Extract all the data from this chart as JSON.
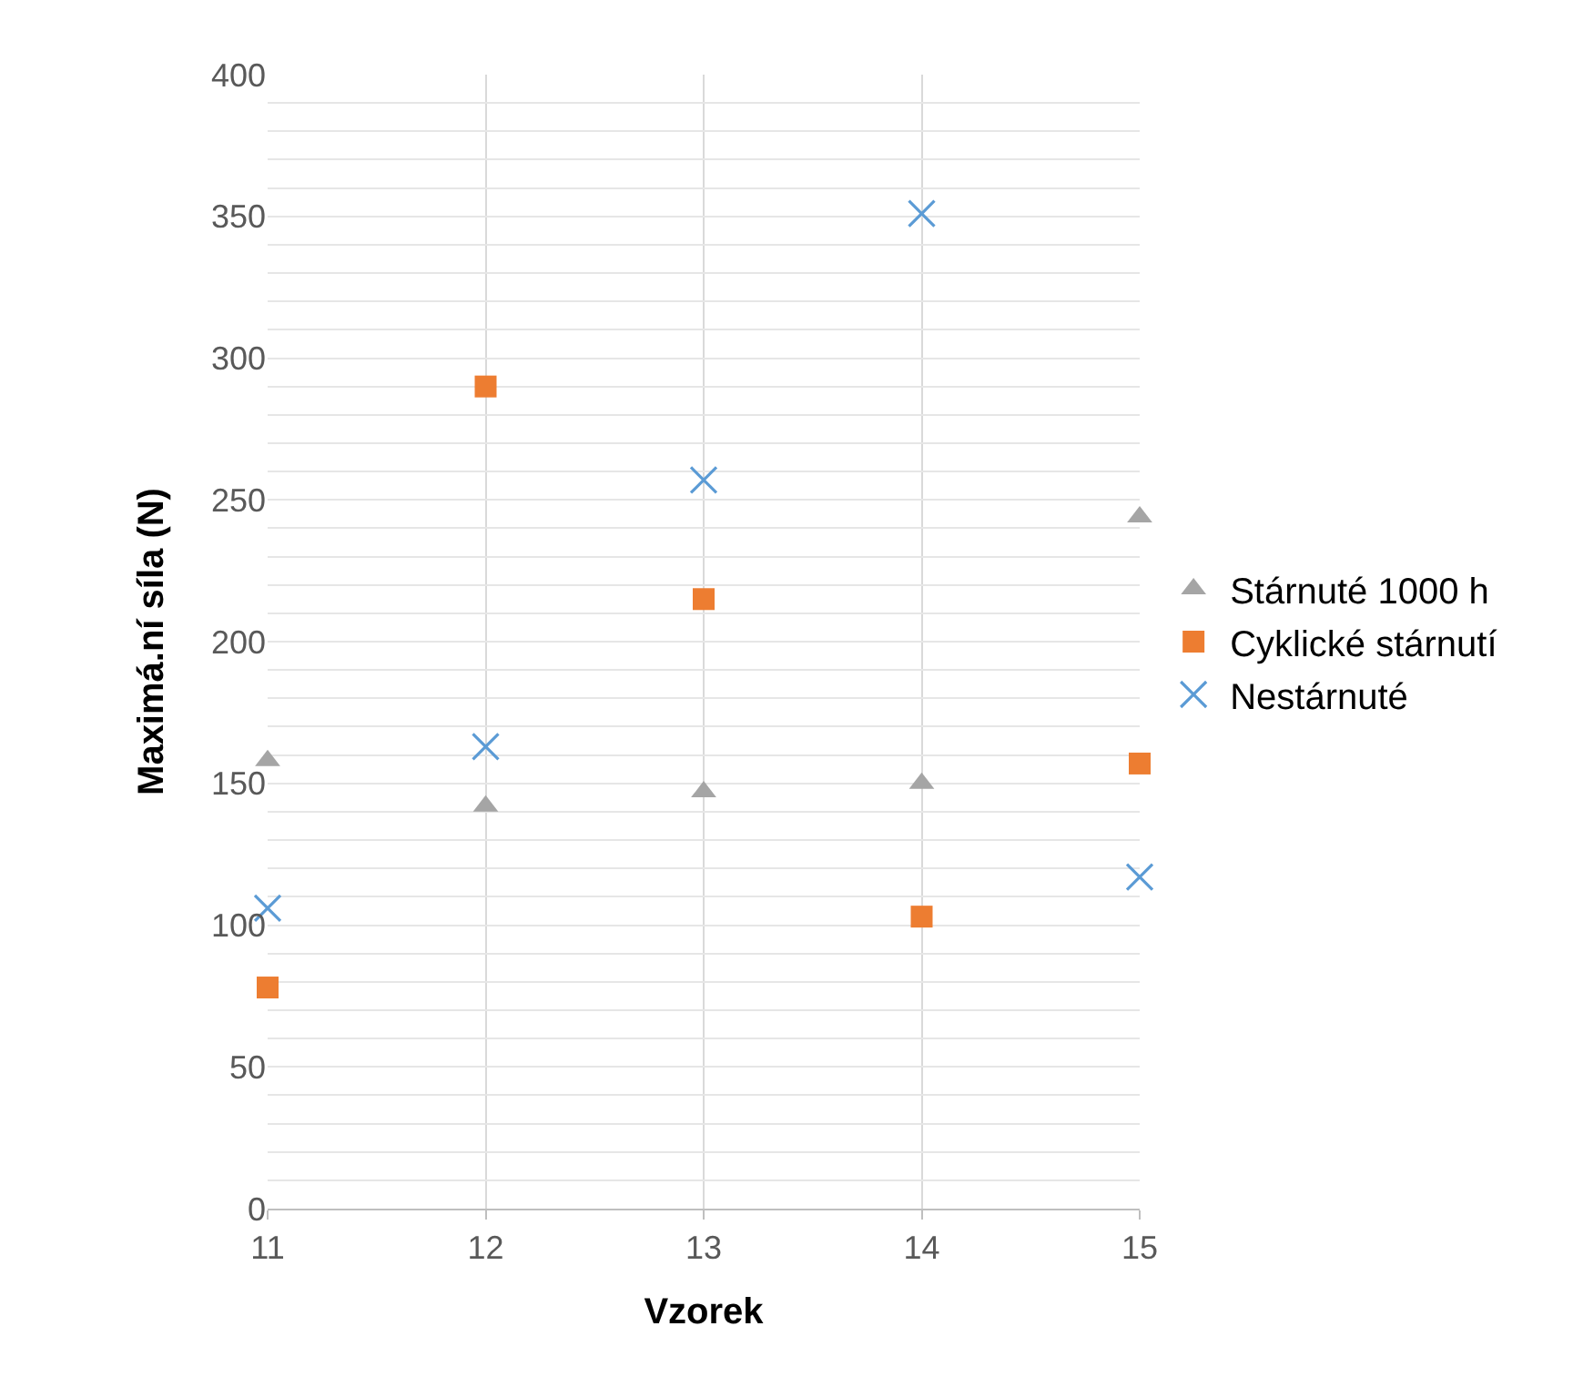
{
  "chart_data": {
    "type": "scatter",
    "xlabel": "Vzorek",
    "ylabel": "Maximá.ní síla (N)",
    "x": [
      11,
      12,
      13,
      14,
      15
    ],
    "series": [
      {
        "name": "Stárnuté 1000 h",
        "color": "#a5a5a5",
        "marker": "triangle",
        "values": [
          158,
          142,
          147,
          150,
          244
        ]
      },
      {
        "name": "Cyklické stárnutí",
        "color": "#ed7d31",
        "marker": "square",
        "values": [
          78,
          290,
          215,
          103,
          157
        ]
      },
      {
        "name": "Nestárnuté",
        "color": "#5b9bd5",
        "marker": "cross",
        "values": [
          106,
          163,
          257,
          351,
          117
        ]
      }
    ],
    "xlim": [
      11,
      15
    ],
    "xticks": [
      11,
      12,
      13,
      14,
      15
    ],
    "ylim": [
      0,
      400
    ],
    "yticks": [
      0,
      {
        "value": 10,
        "label": null
      },
      {
        "value": 20,
        "label": null
      },
      {
        "value": 30,
        "label": null
      },
      {
        "value": 40,
        "label": null
      },
      50,
      {
        "value": 60,
        "label": null
      },
      {
        "value": 70,
        "label": null
      },
      {
        "value": 80,
        "label": null
      },
      {
        "value": 90,
        "label": null
      },
      100,
      {
        "value": 110,
        "label": null
      },
      {
        "value": 120,
        "label": null
      },
      {
        "value": 130,
        "label": null
      },
      {
        "value": 140,
        "label": null
      },
      150,
      {
        "value": 160,
        "label": null
      },
      {
        "value": 170,
        "label": null
      },
      {
        "value": 180,
        "label": null
      },
      {
        "value": 190,
        "label": null
      },
      200,
      {
        "value": 210,
        "label": null
      },
      {
        "value": 220,
        "label": null
      },
      {
        "value": 230,
        "label": null
      },
      {
        "value": 240,
        "label": null
      },
      250,
      {
        "value": 260,
        "label": null
      },
      {
        "value": 270,
        "label": null
      },
      {
        "value": 280,
        "label": null
      },
      {
        "value": 290,
        "label": null
      },
      300,
      {
        "value": 310,
        "label": null
      },
      {
        "value": 320,
        "label": null
      },
      {
        "value": 330,
        "label": null
      },
      {
        "value": 340,
        "label": null
      },
      350,
      {
        "value": 360,
        "label": null
      },
      {
        "value": 370,
        "label": null
      },
      {
        "value": 380,
        "label": null
      },
      {
        "value": 390,
        "label": null
      },
      400
    ],
    "grid": true,
    "legend": "right"
  }
}
